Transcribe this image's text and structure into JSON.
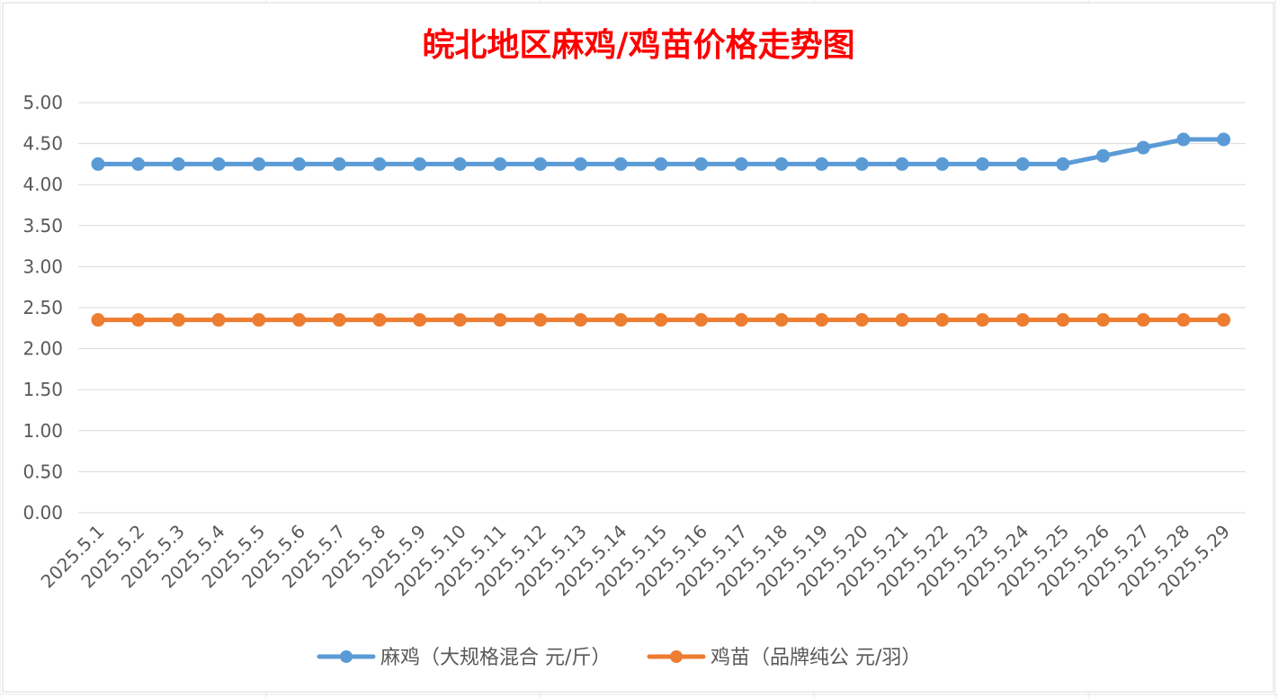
{
  "chart_data": {
    "type": "line",
    "title": "皖北地区麻鸡/鸡苗价格走势图",
    "title_color": "#ff0000",
    "categories": [
      "2025.5.1",
      "2025.5.2",
      "2025.5.3",
      "2025.5.4",
      "2025.5.5",
      "2025.5.6",
      "2025.5.7",
      "2025.5.8",
      "2025.5.9",
      "2025.5.10",
      "2025.5.11",
      "2025.5.12",
      "2025.5.13",
      "2025.5.14",
      "2025.5.15",
      "2025.5.16",
      "2025.5.17",
      "2025.5.18",
      "2025.5.19",
      "2025.5.20",
      "2025.5.21",
      "2025.5.22",
      "2025.5.23",
      "2025.5.24",
      "2025.5.25",
      "2025.5.26",
      "2025.5.27",
      "2025.5.28",
      "2025.5.29"
    ],
    "ylim": [
      0,
      5
    ],
    "yticks": [
      "0.00",
      "0.50",
      "1.00",
      "1.50",
      "2.00",
      "2.50",
      "3.00",
      "3.50",
      "4.00",
      "4.50",
      "5.00"
    ],
    "grid": true,
    "legend_position": "bottom",
    "series": [
      {
        "name": "麻鸡（大规格混合 元/斤）",
        "color": "#5b9bd5",
        "values": [
          4.25,
          4.25,
          4.25,
          4.25,
          4.25,
          4.25,
          4.25,
          4.25,
          4.25,
          4.25,
          4.25,
          4.25,
          4.25,
          4.25,
          4.25,
          4.25,
          4.25,
          4.25,
          4.25,
          4.25,
          4.25,
          4.25,
          4.25,
          4.25,
          4.25,
          4.35,
          4.45,
          4.55,
          4.55
        ]
      },
      {
        "name": "鸡苗（品牌纯公 元/羽）",
        "color": "#ed7d31",
        "values": [
          2.35,
          2.35,
          2.35,
          2.35,
          2.35,
          2.35,
          2.35,
          2.35,
          2.35,
          2.35,
          2.35,
          2.35,
          2.35,
          2.35,
          2.35,
          2.35,
          2.35,
          2.35,
          2.35,
          2.35,
          2.35,
          2.35,
          2.35,
          2.35,
          2.35,
          2.35,
          2.35,
          2.35,
          2.35
        ]
      }
    ]
  }
}
